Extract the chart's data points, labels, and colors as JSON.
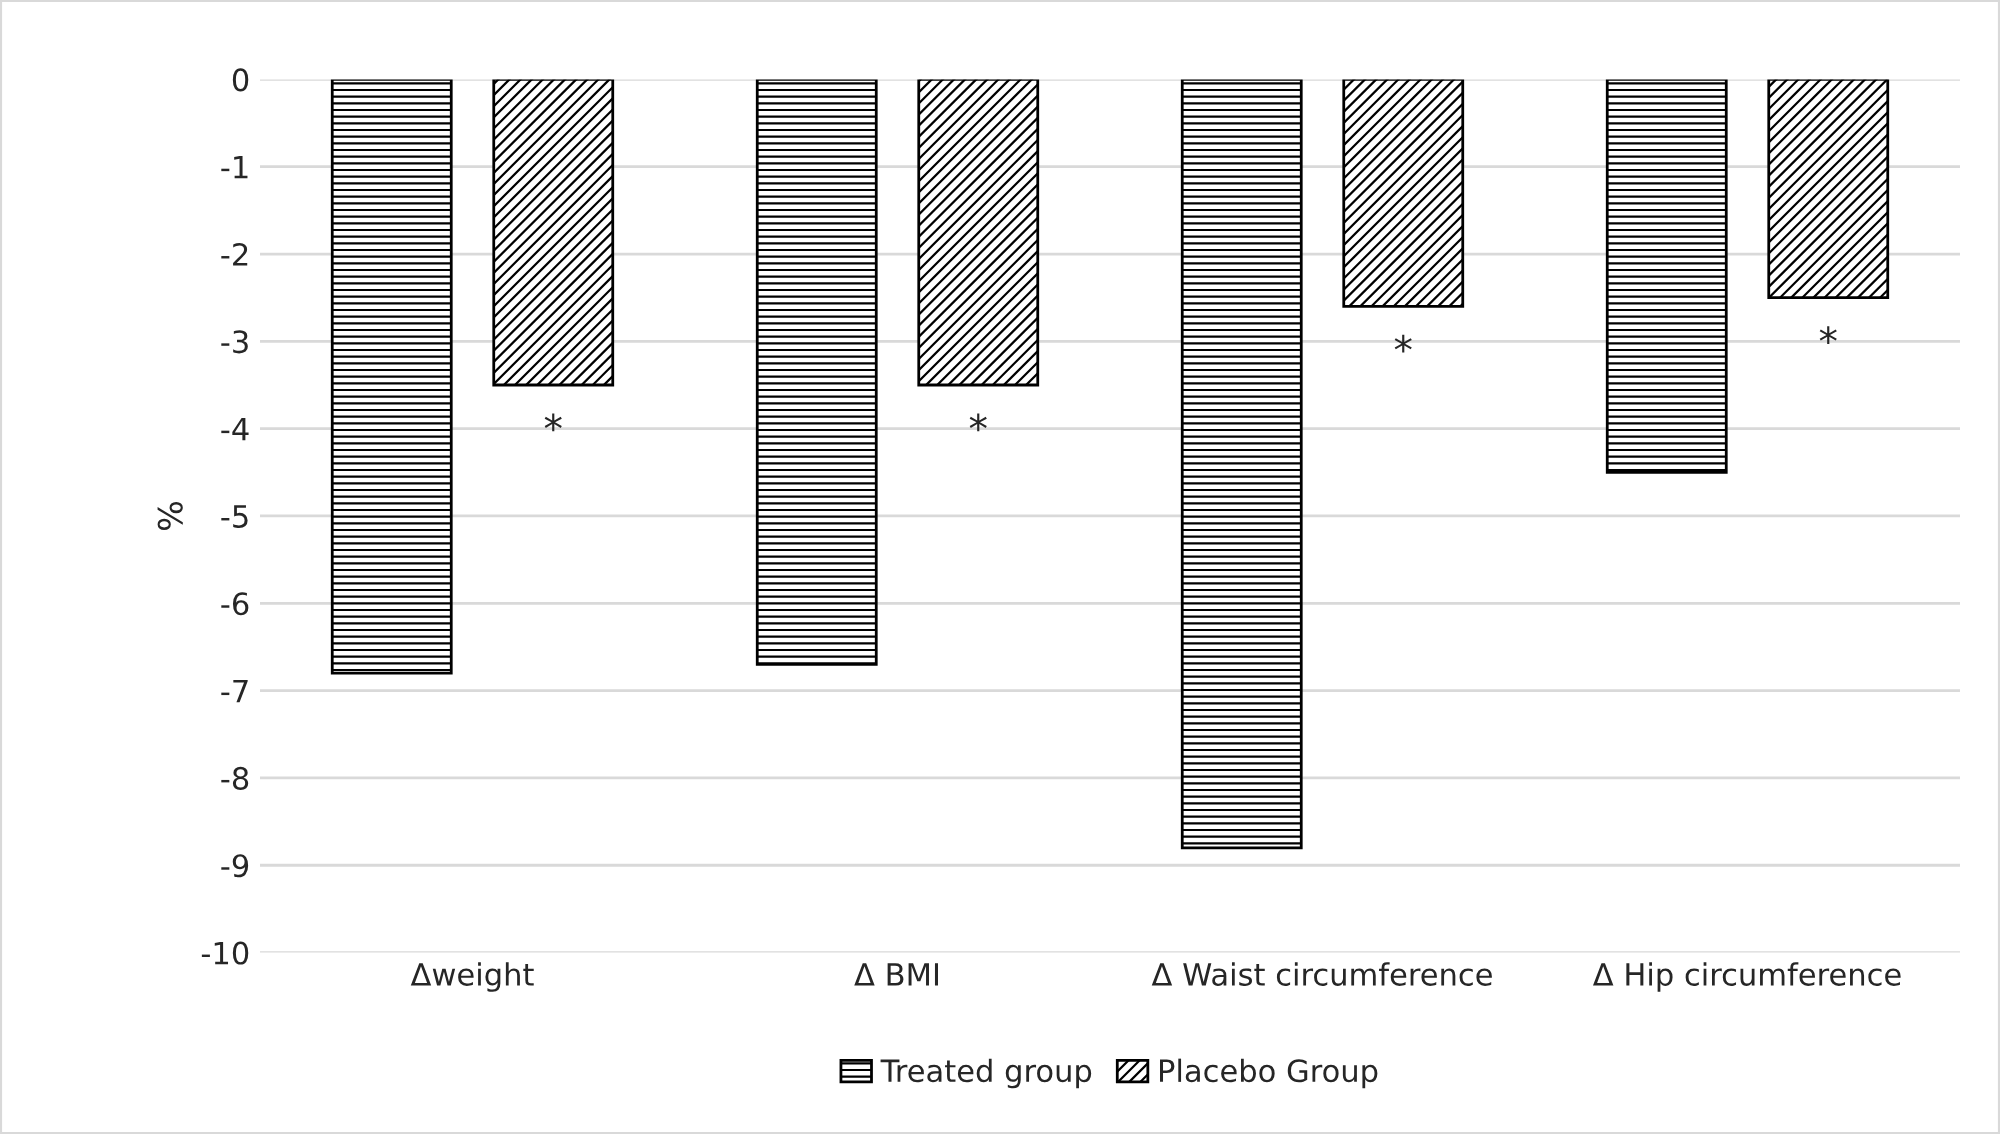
{
  "chart_data": {
    "type": "bar",
    "ylabel": "%",
    "categories": [
      "Δweight",
      "Δ BMI",
      "Δ Waist circumference",
      "Δ Hip circumference"
    ],
    "series": [
      {
        "name": "Treated group",
        "color": "#000000",
        "values": [
          -6.8,
          -6.7,
          -8.8,
          -4.5
        ]
      },
      {
        "name": "Placebo Group",
        "color": "#000000",
        "values": [
          -3.5,
          -3.5,
          -2.6,
          -2.5
        ]
      }
    ],
    "ylim": [
      -10,
      0
    ],
    "yticks": [
      -10,
      -9,
      -8,
      -7,
      -6,
      -5,
      -4,
      -3,
      -2,
      -1,
      0
    ],
    "grid": "y",
    "legend": "bottom",
    "annotations": [
      "*",
      "*",
      "*",
      "*"
    ]
  }
}
